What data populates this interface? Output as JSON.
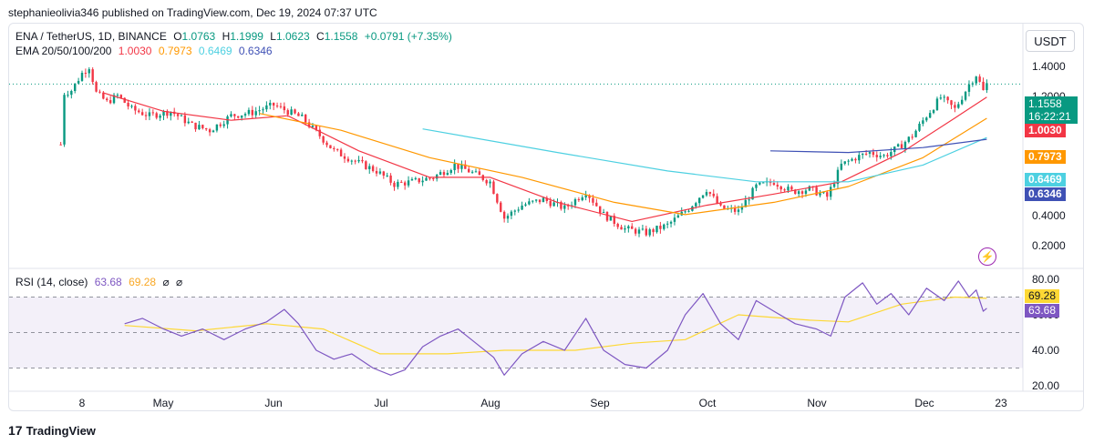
{
  "header": {
    "published": "stephanieolivia346 published on TradingView.com, Dec 19, 2024 07:37 UTC"
  },
  "legend": {
    "symbol": "ENA / TetherUS, 1D, BINANCE",
    "o_label": "O",
    "o_value": "1.0763",
    "h_label": "H",
    "h_value": "1.1999",
    "l_label": "L",
    "l_value": "1.0623",
    "c_label": "C",
    "c_value": "1.1558",
    "change": "+0.0791 (+7.35%)",
    "ema_label": "EMA 20/50/100/200",
    "ema20": "1.0030",
    "ema50": "0.7973",
    "ema100": "0.6469",
    "ema200": "0.6346"
  },
  "rsi_legend": {
    "label": "RSI (14, close)",
    "rsi": "63.68",
    "ma": "69.28",
    "sym1": "⌀",
    "sym2": "⌀"
  },
  "currency_button": "USDT",
  "tags": {
    "price": "1.1558",
    "countdown": "16:22:21",
    "ema20": "1.0030",
    "ema50": "0.7973",
    "ema100": "0.6469",
    "ema200": "0.6346",
    "rsi_ma": "69.28",
    "rsi": "63.68"
  },
  "colors": {
    "up": "#089981",
    "down": "#f23645",
    "ema20": "#f23645",
    "ema50": "#ff9800",
    "ema100": "#4dd0e1",
    "ema200": "#3f51b5",
    "rsi": "#7e57c2",
    "rsi_ma": "#fdd835"
  },
  "brand": "TradingView",
  "chart_data": [
    {
      "type": "candlestick",
      "title": "ENA / TetherUS, 1D, BINANCE",
      "x_ticks": [
        "8",
        "May",
        "Jun",
        "Jul",
        "Aug",
        "Sep",
        "Oct",
        "Nov",
        "Dec",
        "23"
      ],
      "y_ticks": [
        "1.4000",
        "1.2000",
        "0.4000",
        "0.2000"
      ],
      "y_scale": "log",
      "close_path": [
        [
          "2024-04-02",
          0.6
        ],
        [
          "2024-04-03",
          1.05
        ],
        [
          "2024-04-05",
          1.08
        ],
        [
          "2024-04-08",
          1.3
        ],
        [
          "2024-04-10",
          1.4
        ],
        [
          "2024-04-12",
          1.05
        ],
        [
          "2024-04-15",
          0.95
        ],
        [
          "2024-04-18",
          1.02
        ],
        [
          "2024-04-22",
          0.88
        ],
        [
          "2024-04-27",
          0.82
        ],
        [
          "2024-05-03",
          0.86
        ],
        [
          "2024-05-09",
          0.74
        ],
        [
          "2024-05-14",
          0.7
        ],
        [
          "2024-05-20",
          0.82
        ],
        [
          "2024-05-26",
          0.85
        ],
        [
          "2024-06-01",
          0.92
        ],
        [
          "2024-06-05",
          0.86
        ],
        [
          "2024-06-09",
          0.8
        ],
        [
          "2024-06-14",
          0.66
        ],
        [
          "2024-06-18",
          0.56
        ],
        [
          "2024-06-24",
          0.5
        ],
        [
          "2024-06-30",
          0.45
        ],
        [
          "2024-07-05",
          0.39
        ],
        [
          "2024-07-10",
          0.4
        ],
        [
          "2024-07-16",
          0.42
        ],
        [
          "2024-07-22",
          0.48
        ],
        [
          "2024-07-26",
          0.45
        ],
        [
          "2024-08-01",
          0.4
        ],
        [
          "2024-08-05",
          0.27
        ],
        [
          "2024-08-10",
          0.31
        ],
        [
          "2024-08-16",
          0.33
        ],
        [
          "2024-08-22",
          0.3
        ],
        [
          "2024-08-28",
          0.36
        ],
        [
          "2024-09-02",
          0.28
        ],
        [
          "2024-09-08",
          0.24
        ],
        [
          "2024-09-14",
          0.23
        ],
        [
          "2024-09-20",
          0.25
        ],
        [
          "2024-09-26",
          0.3
        ],
        [
          "2024-10-01",
          0.37
        ],
        [
          "2024-10-05",
          0.3
        ],
        [
          "2024-10-10",
          0.29
        ],
        [
          "2024-10-15",
          0.38
        ],
        [
          "2024-10-20",
          0.4
        ],
        [
          "2024-10-25",
          0.36
        ],
        [
          "2024-10-30",
          0.37
        ],
        [
          "2024-11-04",
          0.34
        ],
        [
          "2024-11-08",
          0.48
        ],
        [
          "2024-11-12",
          0.52
        ],
        [
          "2024-11-16",
          0.55
        ],
        [
          "2024-11-20",
          0.53
        ],
        [
          "2024-11-24",
          0.58
        ],
        [
          "2024-11-28",
          0.66
        ],
        [
          "2024-12-02",
          0.82
        ],
        [
          "2024-12-06",
          1.0
        ],
        [
          "2024-12-10",
          0.88
        ],
        [
          "2024-12-14",
          1.15
        ],
        [
          "2024-12-16",
          1.28
        ],
        [
          "2024-12-18",
          1.07
        ],
        [
          "2024-12-19",
          1.1558
        ]
      ],
      "ema20": [
        [
          "2024-04-14",
          1.05
        ],
        [
          "2024-05-01",
          0.86
        ],
        [
          "2024-05-20",
          0.78
        ],
        [
          "2024-06-05",
          0.82
        ],
        [
          "2024-06-25",
          0.56
        ],
        [
          "2024-07-15",
          0.42
        ],
        [
          "2024-08-01",
          0.42
        ],
        [
          "2024-08-20",
          0.32
        ],
        [
          "2024-09-10",
          0.26
        ],
        [
          "2024-10-01",
          0.31
        ],
        [
          "2024-10-20",
          0.35
        ],
        [
          "2024-11-08",
          0.4
        ],
        [
          "2024-11-25",
          0.55
        ],
        [
          "2024-12-10",
          0.8
        ],
        [
          "2024-12-19",
          1.003
        ]
      ],
      "ema50": [
        [
          "2024-05-28",
          0.84
        ],
        [
          "2024-06-20",
          0.7
        ],
        [
          "2024-07-15",
          0.52
        ],
        [
          "2024-08-10",
          0.42
        ],
        [
          "2024-09-05",
          0.32
        ],
        [
          "2024-09-25",
          0.28
        ],
        [
          "2024-10-20",
          0.32
        ],
        [
          "2024-11-10",
          0.38
        ],
        [
          "2024-12-01",
          0.52
        ],
        [
          "2024-12-19",
          0.7973
        ]
      ],
      "ema100": [
        [
          "2024-07-13",
          0.71
        ],
        [
          "2024-08-20",
          0.55
        ],
        [
          "2024-09-20",
          0.45
        ],
        [
          "2024-10-15",
          0.4
        ],
        [
          "2024-11-10",
          0.4
        ],
        [
          "2024-12-01",
          0.48
        ],
        [
          "2024-12-19",
          0.6469
        ]
      ],
      "ema200": [
        [
          "2024-10-19",
          0.56
        ],
        [
          "2024-11-10",
          0.55
        ],
        [
          "2024-12-01",
          0.58
        ],
        [
          "2024-12-19",
          0.6346
        ]
      ]
    },
    {
      "type": "line",
      "title": "RSI (14, close)",
      "y_ticks": [
        "80.00",
        "60.00",
        "40.00",
        "20.00"
      ],
      "ylim": [
        20,
        80
      ],
      "bands": [
        70,
        50,
        30
      ],
      "rsi": [
        [
          "2024-04-20",
          55
        ],
        [
          "2024-04-25",
          58
        ],
        [
          "2024-05-01",
          52
        ],
        [
          "2024-05-06",
          48
        ],
        [
          "2024-05-12",
          52
        ],
        [
          "2024-05-18",
          46
        ],
        [
          "2024-05-24",
          52
        ],
        [
          "2024-05-30",
          56
        ],
        [
          "2024-06-04",
          63
        ],
        [
          "2024-06-08",
          55
        ],
        [
          "2024-06-13",
          40
        ],
        [
          "2024-06-18",
          35
        ],
        [
          "2024-06-23",
          38
        ],
        [
          "2024-06-29",
          30
        ],
        [
          "2024-07-04",
          26
        ],
        [
          "2024-07-08",
          29
        ],
        [
          "2024-07-13",
          42
        ],
        [
          "2024-07-18",
          48
        ],
        [
          "2024-07-23",
          52
        ],
        [
          "2024-07-28",
          44
        ],
        [
          "2024-08-02",
          36
        ],
        [
          "2024-08-05",
          26
        ],
        [
          "2024-08-10",
          38
        ],
        [
          "2024-08-16",
          45
        ],
        [
          "2024-08-22",
          40
        ],
        [
          "2024-08-28",
          58
        ],
        [
          "2024-09-02",
          40
        ],
        [
          "2024-09-08",
          32
        ],
        [
          "2024-09-14",
          30
        ],
        [
          "2024-09-20",
          40
        ],
        [
          "2024-09-25",
          60
        ],
        [
          "2024-09-30",
          72
        ],
        [
          "2024-10-05",
          55
        ],
        [
          "2024-10-10",
          46
        ],
        [
          "2024-10-15",
          68
        ],
        [
          "2024-10-20",
          62
        ],
        [
          "2024-10-26",
          55
        ],
        [
          "2024-11-01",
          52
        ],
        [
          "2024-11-05",
          48
        ],
        [
          "2024-11-09",
          70
        ],
        [
          "2024-11-14",
          78
        ],
        [
          "2024-11-18",
          66
        ],
        [
          "2024-11-22",
          72
        ],
        [
          "2024-11-27",
          60
        ],
        [
          "2024-12-02",
          75
        ],
        [
          "2024-12-07",
          68
        ],
        [
          "2024-12-11",
          79
        ],
        [
          "2024-12-14",
          70
        ],
        [
          "2024-12-16",
          74
        ],
        [
          "2024-12-18",
          62
        ],
        [
          "2024-12-19",
          63.68
        ]
      ],
      "rsi_ma": [
        [
          "2024-04-20",
          54
        ],
        [
          "2024-05-10",
          51
        ],
        [
          "2024-05-30",
          55
        ],
        [
          "2024-06-15",
          52
        ],
        [
          "2024-07-01",
          38
        ],
        [
          "2024-07-20",
          38
        ],
        [
          "2024-08-05",
          40
        ],
        [
          "2024-08-25",
          40
        ],
        [
          "2024-09-10",
          44
        ],
        [
          "2024-09-25",
          46
        ],
        [
          "2024-10-10",
          60
        ],
        [
          "2024-10-30",
          57
        ],
        [
          "2024-11-10",
          56
        ],
        [
          "2024-11-25",
          66
        ],
        [
          "2024-12-10",
          70
        ],
        [
          "2024-12-19",
          69.28
        ]
      ]
    }
  ]
}
